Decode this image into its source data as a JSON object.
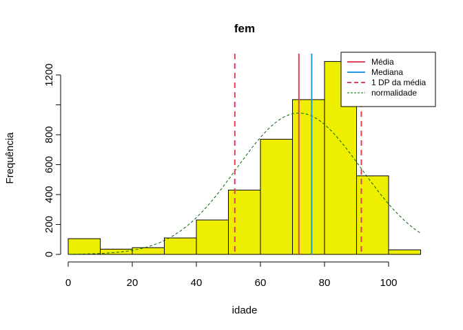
{
  "chart_data": {
    "type": "bar",
    "title": "fem",
    "xlabel": "idade",
    "ylabel": "Frequência",
    "xlim": [
      0,
      110
    ],
    "ylim": [
      0,
      1300
    ],
    "xticks": [
      0,
      20,
      40,
      60,
      80,
      100
    ],
    "yticks": [
      0,
      200,
      400,
      600,
      800,
      1000,
      1200
    ],
    "ytick_labels_shown": [
      "0",
      "200",
      "400",
      "600",
      "800",
      "1200"
    ],
    "grid": false,
    "legend_position": "top-right",
    "bins": [
      {
        "x0": 0,
        "x1": 10,
        "value": 105
      },
      {
        "x0": 10,
        "x1": 20,
        "value": 35
      },
      {
        "x0": 20,
        "x1": 30,
        "value": 45
      },
      {
        "x0": 30,
        "x1": 40,
        "value": 110
      },
      {
        "x0": 40,
        "x1": 50,
        "value": 230
      },
      {
        "x0": 50,
        "x1": 60,
        "value": 430
      },
      {
        "x0": 60,
        "x1": 70,
        "value": 770
      },
      {
        "x0": 70,
        "x1": 80,
        "value": 1035
      },
      {
        "x0": 80,
        "x1": 90,
        "value": 1290
      },
      {
        "x0": 90,
        "x1": 100,
        "value": 525
      },
      {
        "x0": 100,
        "x1": 110,
        "value": 30
      }
    ],
    "bar_fill": "#eeee00",
    "bar_stroke": "#000000",
    "reference_lines": [
      {
        "name": "Média",
        "x": 72,
        "color": "#df4055",
        "dash": false
      },
      {
        "name": "Mediana",
        "x": 76,
        "color": "#2297e6",
        "dash": false
      },
      {
        "name": "1 DP da média",
        "x": 52,
        "color": "#df4055",
        "dash": true
      },
      {
        "name": "1 DP da média",
        "x": 91.5,
        "color": "#df4055",
        "dash": true
      }
    ],
    "normal_curve": {
      "name": "normalidade",
      "mean": 72,
      "sd": 19.5,
      "peak": 945,
      "x_from": 0,
      "x_to": 110,
      "color": "#006400"
    },
    "legend": [
      {
        "label": "Média",
        "color": "#df4055",
        "style": "solid"
      },
      {
        "label": "Mediana",
        "color": "#2297e6",
        "style": "solid"
      },
      {
        "label": "1 DP da média",
        "color": "#df4055",
        "style": "dashed"
      },
      {
        "label": "normalidade",
        "color": "#006400",
        "style": "dashed-thin"
      }
    ]
  }
}
